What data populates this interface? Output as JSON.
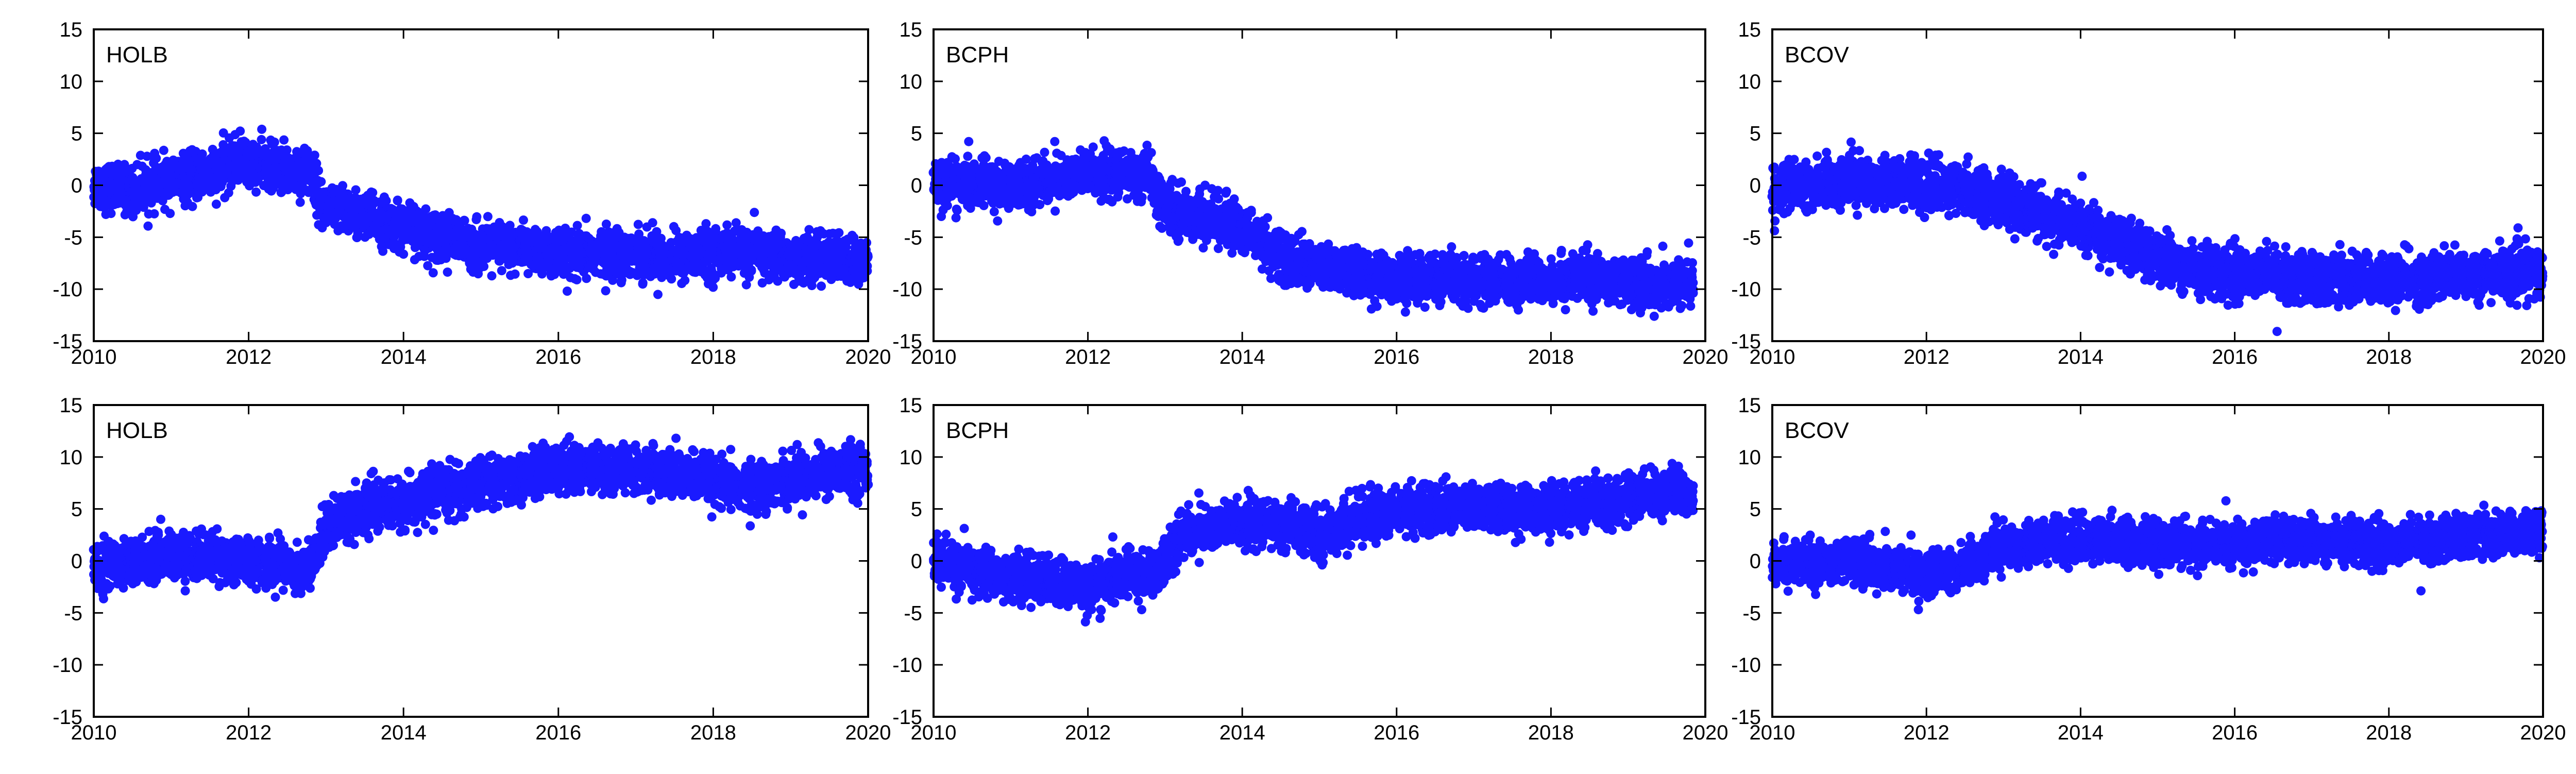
{
  "chart_data": [
    {
      "type": "scatter",
      "title": "HOLB",
      "xlim": [
        2010,
        2020
      ],
      "ylim": [
        -15,
        15
      ],
      "xticks": [
        2010,
        2012,
        2014,
        2016,
        2018,
        2020
      ],
      "yticks": [
        -15,
        -10,
        -5,
        0,
        5,
        10,
        15
      ],
      "grid": false,
      "point_color": "#1a1aff",
      "series": [
        {
          "x": [
            2010.0,
            2010.5,
            2011.0,
            2011.5,
            2011.9,
            2012.1,
            2012.5,
            2012.8,
            2012.95,
            2013.5,
            2014.0,
            2014.5,
            2015.0,
            2015.5,
            2016.0,
            2016.5,
            2017.0,
            2017.5,
            2018.0,
            2018.5,
            2019.0,
            2019.5,
            2020.0
          ],
          "y": [
            0,
            -0.5,
            0.5,
            1,
            2.5,
            2,
            1.5,
            1.5,
            -2,
            -3,
            -4,
            -5,
            -6,
            -6,
            -7,
            -6.5,
            -6.5,
            -7,
            -6.5,
            -6.5,
            -7,
            -7,
            -7.5
          ],
          "spread": 2.2
        }
      ]
    },
    {
      "type": "scatter",
      "title": "BCPH",
      "xlim": [
        2010,
        2020
      ],
      "ylim": [
        -15,
        15
      ],
      "xticks": [
        2010,
        2012,
        2014,
        2016,
        2018,
        2020
      ],
      "yticks": [
        -15,
        -10,
        -5,
        0,
        5,
        10,
        15
      ],
      "grid": false,
      "point_color": "#1a1aff",
      "series": [
        {
          "x": [
            2010.0,
            2010.5,
            2011.0,
            2011.5,
            2012.0,
            2012.5,
            2012.8,
            2012.95,
            2013.5,
            2014.0,
            2014.2,
            2014.5,
            2015.0,
            2015.5,
            2016.0,
            2016.5,
            2017.0,
            2017.5,
            2018.0,
            2018.5,
            2019.0,
            2019.5,
            2019.85
          ],
          "y": [
            0.5,
            0,
            0,
            0.5,
            1,
            1,
            1,
            -2,
            -3,
            -4,
            -5,
            -7,
            -8,
            -8.5,
            -9,
            -9,
            -9,
            -9.5,
            -9,
            -9,
            -9.5,
            -9.5,
            -9.5
          ],
          "spread": 2.2
        }
      ]
    },
    {
      "type": "scatter",
      "title": "BCOV",
      "xlim": [
        2010,
        2020
      ],
      "ylim": [
        -15,
        15
      ],
      "xticks": [
        2010,
        2012,
        2014,
        2016,
        2018,
        2020
      ],
      "yticks": [
        -15,
        -10,
        -5,
        0,
        5,
        10,
        15
      ],
      "grid": false,
      "point_color": "#1a1aff",
      "series": [
        {
          "x": [
            2010.0,
            2010.5,
            2011.0,
            2011.5,
            2012.0,
            2012.5,
            2013.0,
            2013.5,
            2014.0,
            2014.5,
            2015.0,
            2015.5,
            2016.0,
            2016.5,
            2017.0,
            2017.5,
            2018.0,
            2018.5,
            2019.0,
            2019.5,
            2020.0
          ],
          "y": [
            -0.5,
            0,
            0.5,
            0.5,
            0,
            -0.5,
            -1.5,
            -3,
            -4,
            -5.5,
            -7,
            -8,
            -8.5,
            -8.5,
            -9,
            -9,
            -9,
            -9,
            -8.5,
            -8.5,
            -8.5
          ],
          "spread": 2.3
        }
      ]
    },
    {
      "type": "scatter",
      "title": "HOLB",
      "xlim": [
        2010,
        2020
      ],
      "ylim": [
        -15,
        15
      ],
      "xticks": [
        2010,
        2012,
        2014,
        2016,
        2018,
        2020
      ],
      "yticks": [
        -15,
        -10,
        -5,
        0,
        5,
        10,
        15
      ],
      "grid": false,
      "point_color": "#1a1aff",
      "series": [
        {
          "x": [
            2010.0,
            2010.5,
            2011.0,
            2011.5,
            2012.0,
            2012.5,
            2012.8,
            2013.0,
            2013.5,
            2014.0,
            2014.5,
            2015.0,
            2015.5,
            2016.0,
            2016.5,
            2017.0,
            2017.5,
            2018.0,
            2018.5,
            2019.0,
            2019.5,
            2020.0
          ],
          "y": [
            -0.5,
            0,
            0.5,
            0.5,
            0,
            -0.5,
            -1,
            3.5,
            5,
            5.5,
            6.5,
            7.5,
            8,
            9,
            9,
            8.5,
            8.5,
            7.5,
            7,
            8,
            8.5,
            9
          ],
          "spread": 2.2
        }
      ]
    },
    {
      "type": "scatter",
      "title": "BCPH",
      "xlim": [
        2010,
        2020
      ],
      "ylim": [
        -15,
        15
      ],
      "xticks": [
        2010,
        2012,
        2014,
        2016,
        2018,
        2020
      ],
      "yticks": [
        -15,
        -10,
        -5,
        0,
        5,
        10,
        15
      ],
      "grid": false,
      "point_color": "#1a1aff",
      "series": [
        {
          "x": [
            2010.0,
            2010.5,
            2011.0,
            2011.5,
            2012.0,
            2012.5,
            2012.9,
            2013.2,
            2013.5,
            2014.0,
            2014.5,
            2015.0,
            2015.5,
            2016.0,
            2016.5,
            2017.0,
            2017.5,
            2018.0,
            2018.5,
            2019.0,
            2019.5,
            2019.85
          ],
          "y": [
            0,
            -1,
            -1.5,
            -2,
            -2.5,
            -1.5,
            -1,
            2.5,
            3,
            3.5,
            3.5,
            2.5,
            4,
            5,
            5,
            5,
            5,
            5,
            5.5,
            6,
            6.5,
            6.5
          ],
          "spread": 2.2
        }
      ]
    },
    {
      "type": "scatter",
      "title": "BCOV",
      "xlim": [
        2010,
        2020
      ],
      "ylim": [
        -15,
        15
      ],
      "xticks": [
        2010,
        2012,
        2014,
        2016,
        2018,
        2020
      ],
      "yticks": [
        -15,
        -10,
        -5,
        0,
        5,
        10,
        15
      ],
      "grid": false,
      "point_color": "#1a1aff",
      "series": [
        {
          "x": [
            2010.0,
            2010.5,
            2011.0,
            2011.5,
            2012.0,
            2012.5,
            2013.0,
            2013.5,
            2014.0,
            2014.5,
            2015.0,
            2015.5,
            2016.0,
            2016.5,
            2017.0,
            2017.5,
            2018.0,
            2018.5,
            2019.0,
            2019.5,
            2020.0
          ],
          "y": [
            0,
            -0.5,
            0,
            -0.5,
            -1.5,
            -0.5,
            1.5,
            2,
            2,
            2,
            1.5,
            1.5,
            1.5,
            2,
            2,
            2,
            1.5,
            2,
            2.5,
            2.5,
            3
          ],
          "spread": 2.0
        }
      ]
    }
  ]
}
